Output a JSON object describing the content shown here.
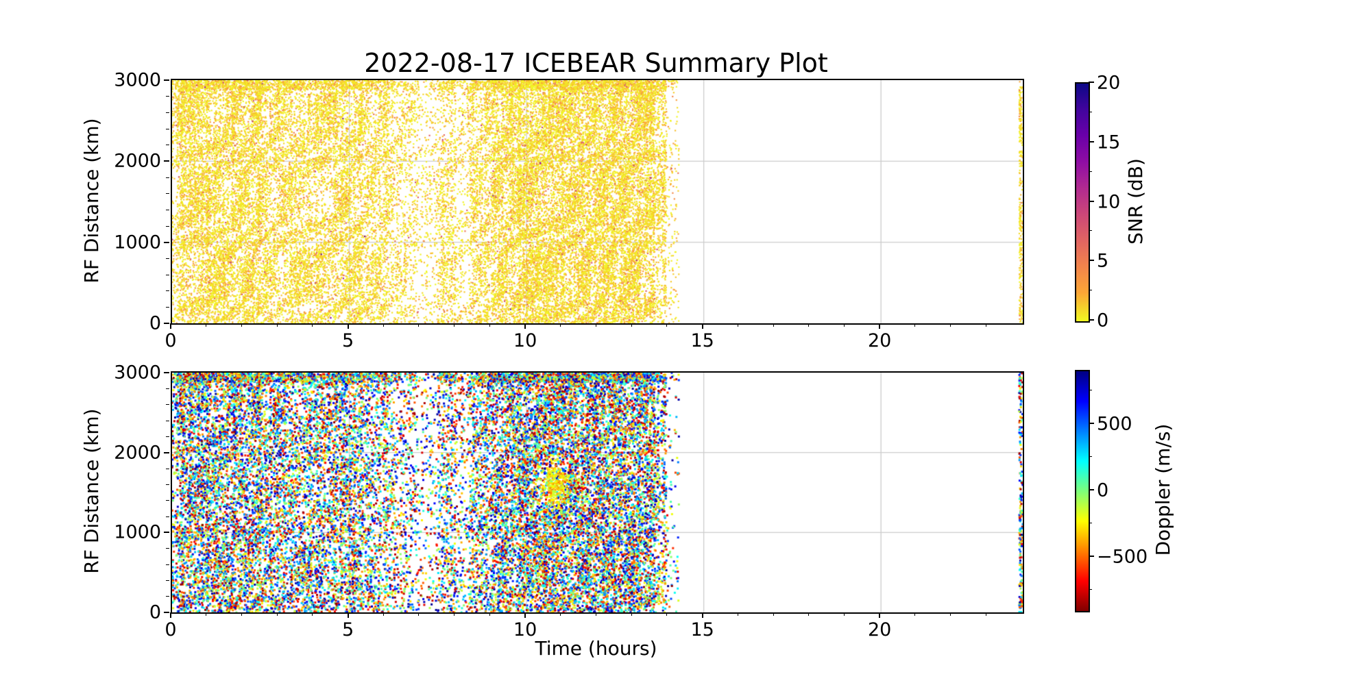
{
  "chart_data": [
    {
      "type": "scatter",
      "panel": "top",
      "title": "2022-08-17 ICEBEAR Summary Plot",
      "xlabel": "",
      "ylabel": "RF Distance (km)",
      "xlim": [
        0,
        24
      ],
      "ylim": [
        0,
        3000
      ],
      "xticks": [
        0,
        5,
        10,
        15,
        20
      ],
      "xtick_minor_step_hours": 1,
      "yticks": [
        0,
        1000,
        2000,
        3000
      ],
      "ytick_minor_step_km": 200,
      "grid": true,
      "grid_x_lines": [
        5,
        10,
        15,
        20
      ],
      "grid_y_lines": [
        1000,
        2000
      ],
      "colorbar": {
        "label": "SNR (dB)",
        "limits": [
          0,
          20
        ],
        "ticks": [
          0,
          5,
          10,
          15,
          20
        ],
        "minor_ticks": [
          2.5,
          7.5,
          12.5,
          17.5
        ],
        "colormap": "plasma_r",
        "stops": [
          [
            0,
            "#0d0887"
          ],
          [
            0.11,
            "#41049d"
          ],
          [
            0.22,
            "#6a00a8"
          ],
          [
            0.33,
            "#8f0da4"
          ],
          [
            0.44,
            "#b12a90"
          ],
          [
            0.55,
            "#cc4778"
          ],
          [
            0.66,
            "#e16462"
          ],
          [
            0.77,
            "#f2844b"
          ],
          [
            0.88,
            "#fca636"
          ],
          [
            1,
            "#f0f921"
          ]
        ]
      },
      "coverage_by_time_hours": [
        [
          0.0,
          0.15,
          0.35
        ],
        [
          0.15,
          2.6,
          0.8
        ],
        [
          2.6,
          4.6,
          0.62
        ],
        [
          4.6,
          5.4,
          0.68
        ],
        [
          5.4,
          6.2,
          0.5
        ],
        [
          6.2,
          6.9,
          0.3
        ],
        [
          6.9,
          7.5,
          0.15
        ],
        [
          7.5,
          8.0,
          0.45
        ],
        [
          8.0,
          8.4,
          0.22
        ],
        [
          8.4,
          9.0,
          0.55
        ],
        [
          9.0,
          9.7,
          0.78
        ],
        [
          9.7,
          13.6,
          0.97
        ],
        [
          13.6,
          13.95,
          0.5
        ],
        [
          13.95,
          14.3,
          0.12
        ],
        [
          14.3,
          23.9,
          0.0
        ],
        [
          23.9,
          24.0,
          0.85
        ]
      ],
      "snr_distribution": {
        "type": "exponential",
        "mean_db": 1.1,
        "outliers_fraction": 0.015,
        "outlier_range_db": [
          3,
          9
        ]
      },
      "notes": "Dense gold scatter (SNR mostly 0-2 dB) covers 0-14 h at all ranges 0-3000 km; sparse white bands near 6.9-7.5 h and 8.0-8.4 h; solid coverage 9.7-13.6 h; no data 14.3-23.9 h; thin data stripe at ~23.9-24 h."
    },
    {
      "type": "scatter",
      "panel": "bottom",
      "title": "",
      "xlabel": "Time (hours)",
      "ylabel": "RF Distance (km)",
      "xlim": [
        0,
        24
      ],
      "ylim": [
        0,
        3000
      ],
      "xticks": [
        0,
        5,
        10,
        15,
        20
      ],
      "xtick_minor_step_hours": 1,
      "yticks": [
        0,
        1000,
        2000,
        3000
      ],
      "ytick_minor_step_km": 200,
      "grid": true,
      "grid_x_lines": [
        5,
        10,
        15,
        20
      ],
      "grid_y_lines": [
        1000,
        2000
      ],
      "colorbar": {
        "label": "Doppler (m/s)",
        "limits": [
          -900,
          900
        ],
        "ticks": [
          500,
          0,
          -500
        ],
        "minor_ticks": [
          750,
          250,
          -250,
          -750
        ],
        "colormap": "jet_r",
        "stops": [
          [
            0,
            "#000083"
          ],
          [
            0.125,
            "#0000ff"
          ],
          [
            0.375,
            "#00ffff"
          ],
          [
            0.5,
            "#7dff7a"
          ],
          [
            0.625,
            "#ffff00"
          ],
          [
            0.875,
            "#ff0000"
          ],
          [
            1,
            "#800000"
          ]
        ]
      },
      "coverage_by_time_hours": [
        [
          0.0,
          0.15,
          0.35
        ],
        [
          0.15,
          2.6,
          0.8
        ],
        [
          2.6,
          4.6,
          0.62
        ],
        [
          4.6,
          5.4,
          0.68
        ],
        [
          5.4,
          6.2,
          0.5
        ],
        [
          6.2,
          6.9,
          0.3
        ],
        [
          6.9,
          7.5,
          0.15
        ],
        [
          7.5,
          8.0,
          0.45
        ],
        [
          8.0,
          8.4,
          0.22
        ],
        [
          8.4,
          9.0,
          0.55
        ],
        [
          9.0,
          9.7,
          0.78
        ],
        [
          9.7,
          13.6,
          0.95
        ],
        [
          13.6,
          13.95,
          0.5
        ],
        [
          13.95,
          14.3,
          0.12
        ],
        [
          14.3,
          23.9,
          0.0
        ],
        [
          23.9,
          24.0,
          0.85
        ]
      ],
      "doppler_distribution": {
        "type": "uniform",
        "range_m_s": [
          -880,
          880
        ]
      },
      "features": {
        "echo_blob": {
          "time_h": 10.8,
          "rf_km": 1600,
          "sd_time_h": 0.2,
          "sd_rf_km": 130,
          "doppler_m_s": -250,
          "sd_doppler_m_s": 120,
          "points": 260,
          "description": "bright yellow-orange cluster of near-zero/negative Doppler echoes"
        }
      },
      "notes": "Multicoloured Doppler scatter (full -900 to +900 m/s spread, jet-reversed colours) with same 0-14 h coverage as SNR panel, same gaps, and a thin stripe at ~23.9-24 h."
    }
  ],
  "colors": {
    "grid": "#cccccc",
    "spine": "#000000",
    "text": "#000000",
    "background": "#ffffff"
  }
}
